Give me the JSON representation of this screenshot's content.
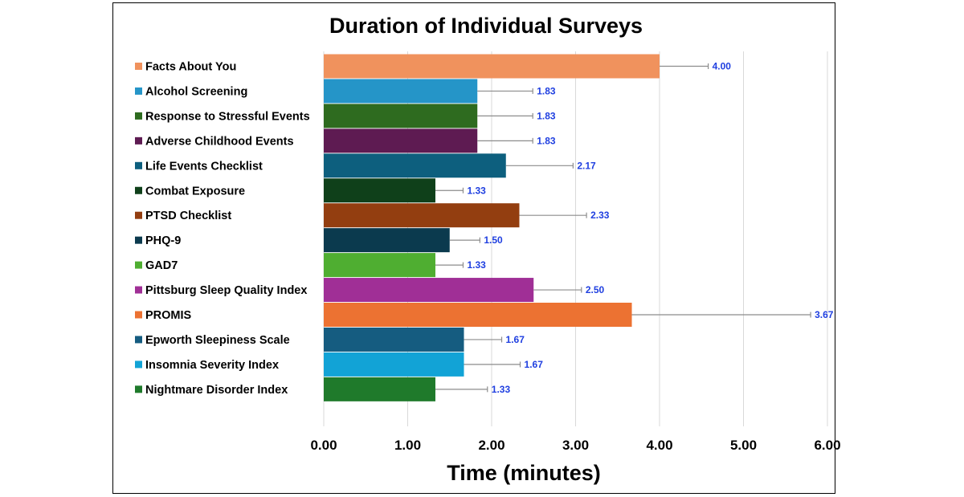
{
  "chart_data": {
    "type": "bar",
    "orientation": "horizontal",
    "title": "Duration of Individual Surveys",
    "xlabel": "Time (minutes)",
    "ylabel": "",
    "xlim": [
      0,
      6
    ],
    "ticks": [
      "0.00",
      "1.00",
      "2.00",
      "3.00",
      "4.00",
      "5.00",
      "6.00"
    ],
    "tick_values": [
      0,
      1,
      2,
      3,
      4,
      5,
      6
    ],
    "grid": true,
    "legend": "left",
    "categories": [
      "Facts About You",
      "Alcohol Screening",
      "Response to Stressful Events",
      "Adverse Childhood Events",
      "Life Events Checklist",
      "Combat Exposure",
      "PTSD Checklist",
      "PHQ-9",
      "GAD7",
      "Pittsburg Sleep Quality Index",
      "PROMIS",
      "Epworth Sleepiness Scale",
      "Insomnia Severity Index",
      "Nightmare Disorder Index"
    ],
    "values": [
      4.0,
      1.83,
      1.83,
      1.83,
      2.17,
      1.33,
      2.33,
      1.5,
      1.33,
      2.5,
      3.67,
      1.67,
      1.67,
      1.33
    ],
    "value_labels": [
      "4.00",
      "1.83",
      "1.83",
      "1.83",
      "2.17",
      "1.33",
      "2.33",
      "1.50",
      "1.33",
      "2.50",
      "3.67",
      "1.67",
      "1.67",
      "1.33"
    ],
    "error_upper": [
      4.58,
      2.49,
      2.49,
      2.49,
      2.97,
      1.66,
      3.13,
      1.86,
      1.66,
      3.07,
      5.8,
      2.12,
      2.34,
      1.95
    ],
    "colors": [
      "#f0925d",
      "#2595c8",
      "#2e6b1f",
      "#5e1b52",
      "#0d5f7e",
      "#0f401a",
      "#933e10",
      "#0b3a4e",
      "#4fae31",
      "#a02f96",
      "#ec7232",
      "#155c80",
      "#12a3d6",
      "#1f7a2b"
    ],
    "value_label_color": "#1f3fe0",
    "error_bar_color": "#8c8c8c"
  }
}
